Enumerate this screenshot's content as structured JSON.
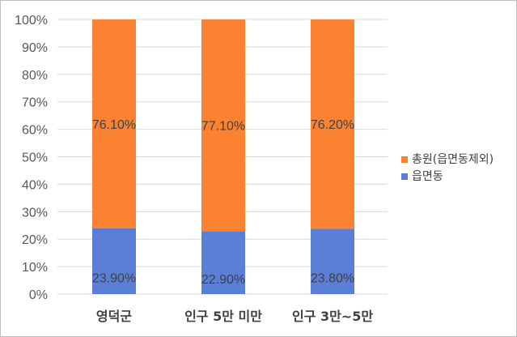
{
  "chart_data": {
    "type": "bar",
    "stacked": true,
    "percent": true,
    "categories": [
      "영덕군",
      "인구 5만 미만",
      "인구 3만~5만"
    ],
    "series": [
      {
        "name": "읍면동",
        "values": [
          23.9,
          22.9,
          23.8
        ],
        "labels": [
          "23.90%",
          "22.90%",
          "23.80%"
        ],
        "color": "#5b7fd6"
      },
      {
        "name": "총원(읍면동제외)",
        "values": [
          76.1,
          77.1,
          76.2
        ],
        "labels": [
          "76.10%",
          "77.10%",
          "76.20%"
        ],
        "color": "#fb8233"
      }
    ],
    "yticks": [
      "0%",
      "10%",
      "20%",
      "30%",
      "40%",
      "50%",
      "60%",
      "70%",
      "80%",
      "90%",
      "100%"
    ],
    "ylim": [
      0,
      100
    ],
    "grid": true,
    "legend": "right"
  }
}
